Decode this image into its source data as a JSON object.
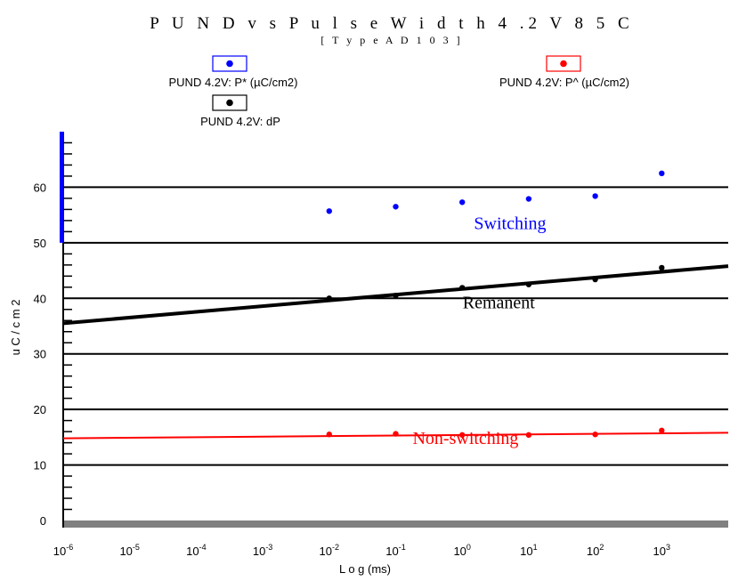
{
  "chart_data": {
    "type": "scatter",
    "title": "P U N D v s P u l s e W i d t h 4 .2 V 8 5 C",
    "subtitle": "[ T y p e A D 1 0 3 ]",
    "xlabel": "L o g (ms)",
    "ylabel": "u C / c m 2",
    "xscale": "log",
    "xlim_exp": [
      -6,
      4
    ],
    "ylim": [
      0,
      70
    ],
    "x_tick_exponents": [
      -6,
      -5,
      -4,
      -3,
      -2,
      -1,
      0,
      1,
      2,
      3
    ],
    "y_ticks": [
      0,
      10,
      20,
      30,
      40,
      50,
      60
    ],
    "grid": "horizontal",
    "series": [
      {
        "name": "PUND 4.2V: P* (µC/cm2)",
        "color": "#0000ff",
        "x": [
          0.01,
          0.1,
          1,
          10,
          100,
          1000
        ],
        "y": [
          55.7,
          56.5,
          57.3,
          57.9,
          58.4,
          62.5
        ]
      },
      {
        "name": "PUND 4.2V: P^ (µC/cm2)",
        "color": "#ff0000",
        "x": [
          0.01,
          0.1,
          1,
          10,
          100,
          1000
        ],
        "y": [
          15.5,
          15.6,
          15.4,
          15.4,
          15.5,
          16.2
        ],
        "fit_line": {
          "x0_exp": -6,
          "y0": 14.8,
          "x1_exp": 4,
          "y1": 15.8
        }
      },
      {
        "name": "PUND 4.2V: dP",
        "color": "#000000",
        "x": [
          0.01,
          0.1,
          1,
          10,
          100,
          1000
        ],
        "y": [
          40.0,
          40.5,
          41.9,
          42.5,
          43.4,
          45.5
        ],
        "fit_line": {
          "x0_exp": -6,
          "y0": 35.5,
          "x1_exp": 4,
          "y1": 45.8
        }
      }
    ],
    "annotations": [
      {
        "text": "Switching",
        "color": "#0000ff",
        "x_exp": 0.72,
        "y": 52.5
      },
      {
        "text": "Remanent",
        "color": "#000000",
        "x_exp": 0.55,
        "y": 38.2
      },
      {
        "text": "Non-switching",
        "color": "#ff0000",
        "x_exp": 0.05,
        "y": 13.8
      }
    ],
    "legend": [
      {
        "label": "PUND 4.2V: P* (µC/cm2)",
        "color": "#0000ff",
        "box_color": "#0000ff"
      },
      {
        "label": "PUND 4.2V: P^ (µC/cm2)",
        "color": "#ff0000",
        "box_color": "#ff0000"
      },
      {
        "label": "PUND 4.2V: dP",
        "color": "#000000",
        "box_color": "#000000"
      }
    ]
  }
}
